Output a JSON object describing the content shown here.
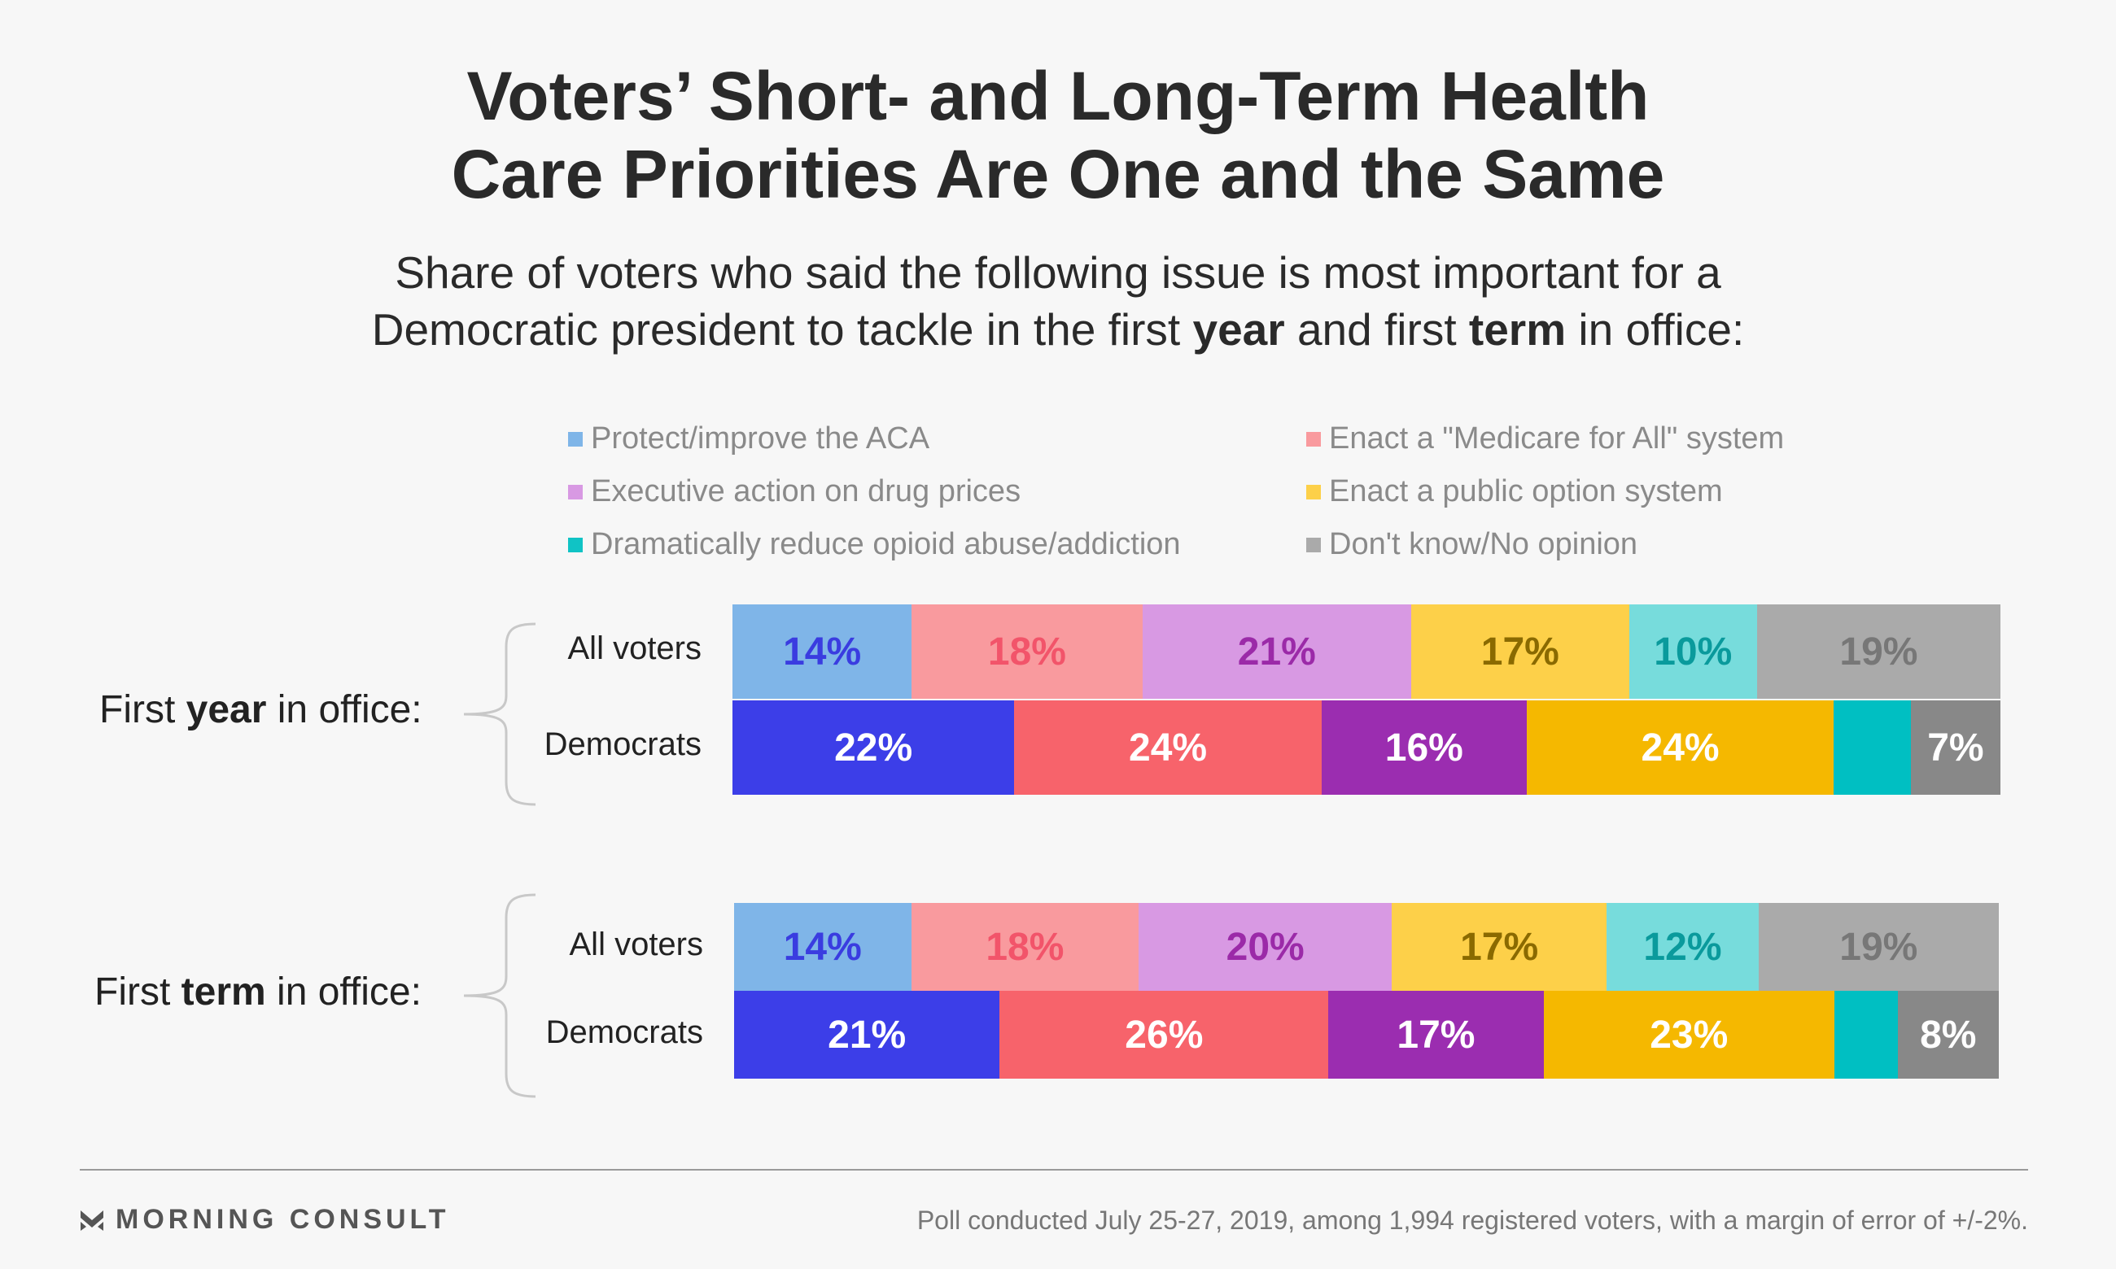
{
  "chart_data": {
    "type": "bar",
    "title": [
      "Voters’ Short- and Long-Term Health",
      "Care Priorities Are One and the Same"
    ],
    "subtitle": {
      "line1": "Share of voters who said the following issue is most important for a",
      "line2_pre": "Democratic president to tackle in the first ",
      "line2_b1": "year",
      "line2_mid": " and first ",
      "line2_b2": "term",
      "line2_post": " in office:"
    },
    "legend": [
      {
        "label": "Protect/improve the ACA",
        "color": "#7fb5e8"
      },
      {
        "label": "Enact a \"Medicare for All\" system",
        "color": "#f99a9e"
      },
      {
        "label": "Executive action on drug prices",
        "color": "#d899e3"
      },
      {
        "label": "Enact a public option system",
        "color": "#fdd049"
      },
      {
        "label": "Dramatically reduce opioid abuse/addiction",
        "color": "#10c3c5"
      },
      {
        "label": "Don't know/No opinion",
        "color": "#aaaaaa"
      }
    ],
    "groups": [
      {
        "label_pre": "First ",
        "label_bold": "year",
        "label_post": " in office:",
        "rows": [
          {
            "name": "All voters",
            "values": [
              14,
              18,
              21,
              17,
              10,
              19
            ],
            "labels": [
              "14%",
              "18%",
              "21%",
              "17%",
              "10%",
              "19%"
            ]
          },
          {
            "name": "Democrats",
            "values": [
              22,
              24,
              16,
              24,
              6,
              7
            ],
            "labels": [
              "22%",
              "24%",
              "16%",
              "24%",
              "",
              "7%"
            ]
          }
        ]
      },
      {
        "label_pre": "First ",
        "label_bold": "term",
        "label_post": " in office:",
        "rows": [
          {
            "name": "All voters",
            "values": [
              14,
              18,
              20,
              17,
              12,
              19
            ],
            "labels": [
              "14%",
              "18%",
              "20%",
              "17%",
              "12%",
              "19%"
            ]
          },
          {
            "name": "Democrats",
            "values": [
              21,
              26,
              17,
              23,
              5,
              8
            ],
            "labels": [
              "21%",
              "26%",
              "17%",
              "23%",
              "",
              "8%"
            ]
          }
        ]
      }
    ],
    "series_styles": {
      "All voters": {
        "fill": [
          "#7fb5e8",
          "#f99a9e",
          "#d899e3",
          "#fdd049",
          "#77dcdc",
          "#aaaaaa"
        ],
        "text": [
          "#3a3ce0",
          "#f2546a",
          "#9b2aa8",
          "#8a6a00",
          "#0a9a9c",
          "#777777"
        ]
      },
      "Democrats": {
        "fill": [
          "#3c3ee8",
          "#f7636b",
          "#9b2db0",
          "#f5b800",
          "#00bfc2",
          "#888888"
        ],
        "text": [
          "#ffffff",
          "#ffffff",
          "#ffffff",
          "#ffffff",
          "#ffffff",
          "#ffffff"
        ]
      }
    }
  },
  "footer": {
    "logo": "MORNING CONSULT",
    "note": "Poll conducted July 25-27, 2019, among 1,994 registered voters, with a margin of error of +/-2%."
  }
}
